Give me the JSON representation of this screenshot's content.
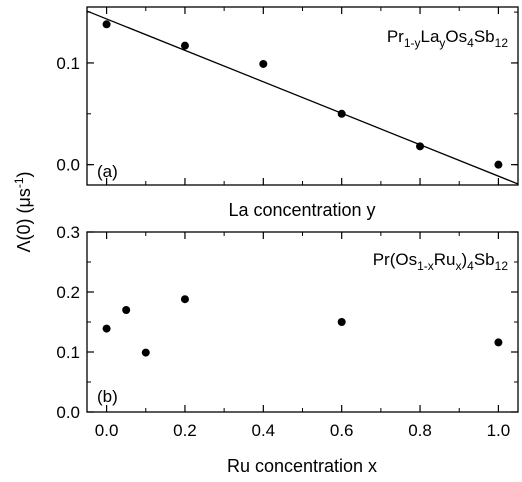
{
  "chart_data": [
    {
      "type": "scatter",
      "panel_label": "(a)",
      "compound": {
        "pre": "Pr",
        "sub1": "1-y",
        "mid": "La",
        "sub2": "y",
        "post": "Os",
        "sub3": "4",
        "post2": "Sb",
        "sub4": "12"
      },
      "xlabel": "La concentration y",
      "xlim": [
        -0.05,
        1.05
      ],
      "ylim": [
        -0.02,
        0.155
      ],
      "xticks": [
        0.0,
        0.2,
        0.4,
        0.6,
        0.8,
        1.0
      ],
      "yticks": [
        0.0,
        0.1
      ],
      "yticklabels": [
        "0.0",
        "0.1"
      ],
      "x": [
        0.0,
        0.2,
        0.4,
        0.6,
        0.8,
        1.0
      ],
      "y": [
        0.138,
        0.117,
        0.099,
        0.05,
        0.018,
        0.0
      ],
      "fit_line": {
        "x": [
          -0.05,
          1.05
        ],
        "y": [
          0.151,
          -0.019
        ]
      }
    },
    {
      "type": "scatter",
      "panel_label": "(b)",
      "compound": {
        "pre": "Pr(Os",
        "sub1": "1-x",
        "mid": "Ru",
        "sub2": "x",
        "post": ")",
        "sub3": "4",
        "post2": "Sb",
        "sub4": "12"
      },
      "xlabel": "Ru concentration x",
      "xlim": [
        -0.05,
        1.05
      ],
      "ylim": [
        0.0,
        0.3
      ],
      "xticks": [
        0.0,
        0.2,
        0.4,
        0.6,
        0.8,
        1.0
      ],
      "xticklabels": [
        "0.0",
        "0.2",
        "0.4",
        "0.6",
        "0.8",
        "1.0"
      ],
      "yticks": [
        0.0,
        0.1,
        0.2,
        0.3
      ],
      "yticklabels": [
        "0.0",
        "0.1",
        "0.2",
        "0.3"
      ],
      "x": [
        0.0,
        0.05,
        0.1,
        0.2,
        0.6,
        1.0
      ],
      "y": [
        0.139,
        0.17,
        0.099,
        0.188,
        0.15,
        0.116
      ]
    }
  ],
  "ylabel_shared": "Λ(0) (μs⁻¹)",
  "ylabel_parts": {
    "main": "Λ(0) (μs",
    "sup": "-1",
    "close": ")"
  }
}
